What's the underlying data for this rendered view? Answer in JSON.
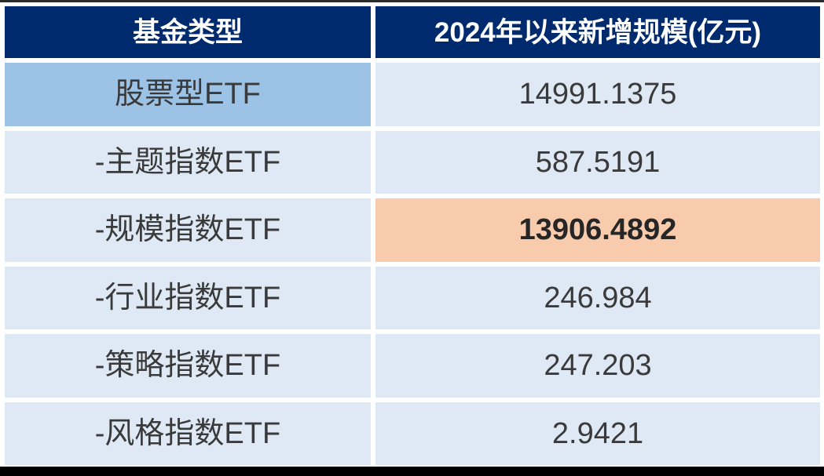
{
  "table": {
    "columns": [
      {
        "label": "基金类型"
      },
      {
        "label": "2024年以来新增规模(亿元)"
      }
    ],
    "rows": [
      {
        "label": "股票型ETF",
        "value": "14991.1375",
        "label_highlight": "medium-blue",
        "value_highlight": ""
      },
      {
        "label": "-主题指数ETF",
        "value": "587.5191",
        "label_highlight": "",
        "value_highlight": ""
      },
      {
        "label": "-规模指数ETF",
        "value": "13906.4892",
        "label_highlight": "",
        "value_highlight": "orange-bold"
      },
      {
        "label": "-行业指数ETF",
        "value": "246.984",
        "label_highlight": "",
        "value_highlight": ""
      },
      {
        "label": "-策略指数ETF",
        "value": "247.203",
        "label_highlight": "",
        "value_highlight": ""
      },
      {
        "label": "-风格指数ETF",
        "value": "2.9421",
        "label_highlight": "",
        "value_highlight": ""
      }
    ]
  },
  "colors": {
    "header_bg": "#002a6e",
    "header_text": "#ffffff",
    "cell_bg": "#dee9f5",
    "label_highlight_bg": "#9cc3e6",
    "value_highlight_bg": "#f8cbad",
    "body_text": "#3a3a3a",
    "top_line": "#2b2b2b",
    "bottom_bar": "#000000"
  },
  "chart_data": {
    "type": "table",
    "title": "",
    "columns": [
      "基金类型",
      "2024年以来新增规模(亿元)"
    ],
    "rows": [
      [
        "股票型ETF",
        14991.1375
      ],
      [
        "-主题指数ETF",
        587.5191
      ],
      [
        "-规模指数ETF",
        13906.4892
      ],
      [
        "-行业指数ETF",
        246.984
      ],
      [
        "-策略指数ETF",
        247.203
      ],
      [
        "-风格指数ETF",
        2.9421
      ]
    ],
    "notes": "Row '股票型ETF' label cell highlighted medium blue; row '-规模指数ETF' value cell highlighted orange with bold text; 股票型ETF is the parent category of the five indented index ETF sub-rows"
  }
}
